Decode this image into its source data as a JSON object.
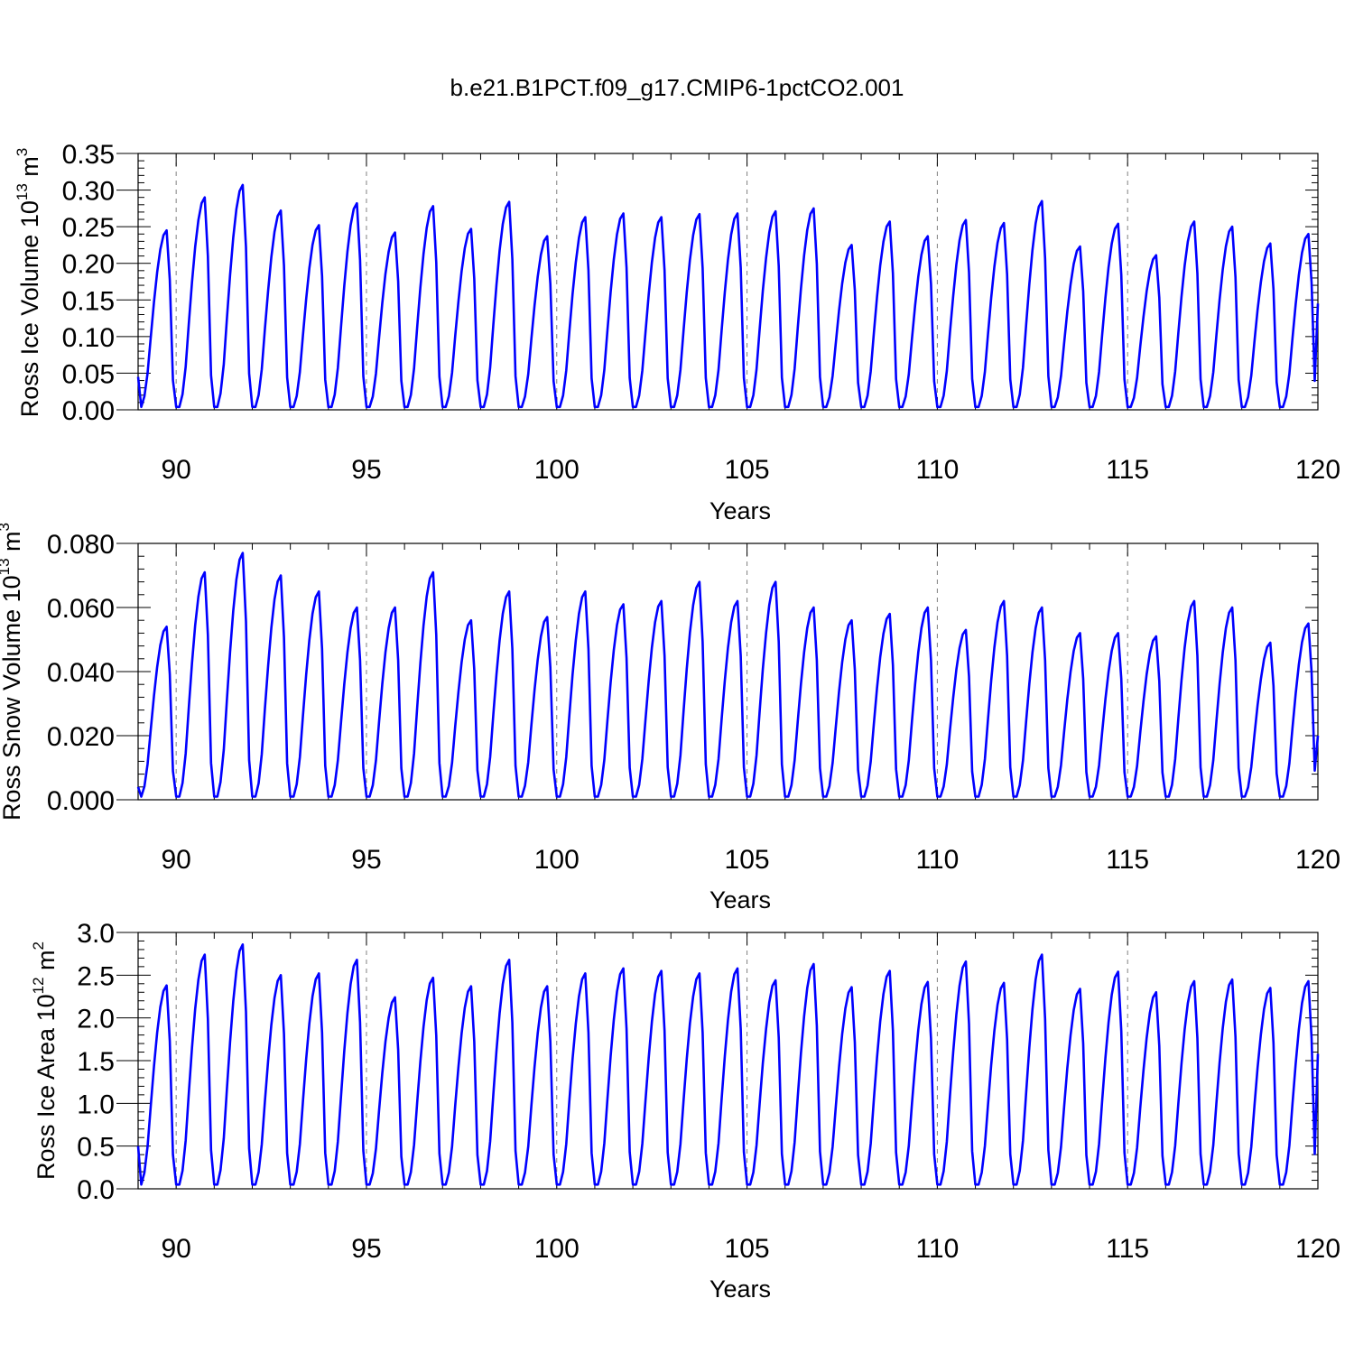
{
  "title": "b.e21.B1PCT.f09_g17.CMIP6-1pctCO2.001",
  "colors": {
    "series": "#0000ff",
    "axis": "#000000",
    "refline": "#808080"
  },
  "chart_data": [
    {
      "type": "line",
      "name": "ice_volume",
      "xlabel": "Years",
      "ylabel": {
        "text": "Ross Ice Volume 10",
        "exp": "13",
        "unit": " m",
        "unit_exp": "3"
      },
      "xlim": [
        89,
        120
      ],
      "ylim": [
        0,
        0.35
      ],
      "xticks": [
        "90",
        "95",
        "100",
        "105",
        "110",
        "115",
        "120"
      ],
      "yticks": [
        "0.00",
        "0.05",
        "0.10",
        "0.15",
        "0.20",
        "0.25",
        "0.30",
        "0.35"
      ],
      "vlines": [
        90,
        95,
        100,
        105,
        110,
        115
      ],
      "seasonal_min": 0.004,
      "peaks": [
        0.245,
        0.29,
        0.307,
        0.272,
        0.252,
        0.282,
        0.242,
        0.278,
        0.247,
        0.284,
        0.237,
        0.263,
        0.268,
        0.263,
        0.267,
        0.268,
        0.271,
        0.275,
        0.225,
        0.257,
        0.237,
        0.259,
        0.255,
        0.285,
        0.223,
        0.254,
        0.211,
        0.257,
        0.25,
        0.227,
        0.24
      ],
      "start": 0.045,
      "end": 0.145
    },
    {
      "type": "line",
      "name": "snow_volume",
      "xlabel": "Years",
      "ylabel": {
        "text": "Ross Snow Volume 10",
        "exp": "13",
        "unit": " m",
        "unit_exp": "3"
      },
      "xlim": [
        89,
        120
      ],
      "ylim": [
        0,
        0.08
      ],
      "xticks": [
        "90",
        "95",
        "100",
        "105",
        "110",
        "115",
        "120"
      ],
      "yticks": [
        "0.000",
        "0.020",
        "0.040",
        "0.060",
        "0.080"
      ],
      "vlines": [
        90,
        95,
        100,
        105,
        110,
        115
      ],
      "seasonal_min": 0.001,
      "peaks": [
        0.054,
        0.071,
        0.077,
        0.07,
        0.065,
        0.06,
        0.06,
        0.071,
        0.056,
        0.065,
        0.057,
        0.065,
        0.061,
        0.062,
        0.068,
        0.062,
        0.068,
        0.06,
        0.056,
        0.058,
        0.06,
        0.053,
        0.062,
        0.06,
        0.052,
        0.052,
        0.051,
        0.062,
        0.06,
        0.049,
        0.055
      ],
      "start": 0.004,
      "end": 0.02
    },
    {
      "type": "line",
      "name": "ice_area",
      "xlabel": "Years",
      "ylabel": {
        "text": "Ross Ice Area 10",
        "exp": "12",
        "unit": " m",
        "unit_exp": "2"
      },
      "xlim": [
        89,
        120
      ],
      "ylim": [
        0,
        3.0
      ],
      "xticks": [
        "90",
        "95",
        "100",
        "105",
        "110",
        "115",
        "120"
      ],
      "yticks": [
        "0.0",
        "0.5",
        "1.0",
        "1.5",
        "2.0",
        "2.5",
        "3.0"
      ],
      "vlines": [
        90,
        95,
        100,
        105,
        110,
        115
      ],
      "seasonal_min": 0.05,
      "peaks": [
        2.38,
        2.74,
        2.86,
        2.5,
        2.52,
        2.68,
        2.24,
        2.47,
        2.37,
        2.68,
        2.37,
        2.52,
        2.58,
        2.55,
        2.52,
        2.58,
        2.44,
        2.63,
        2.36,
        2.55,
        2.42,
        2.66,
        2.41,
        2.74,
        2.34,
        2.54,
        2.3,
        2.43,
        2.45,
        2.35,
        2.43
      ],
      "start": 0.5,
      "end": 1.58
    }
  ]
}
